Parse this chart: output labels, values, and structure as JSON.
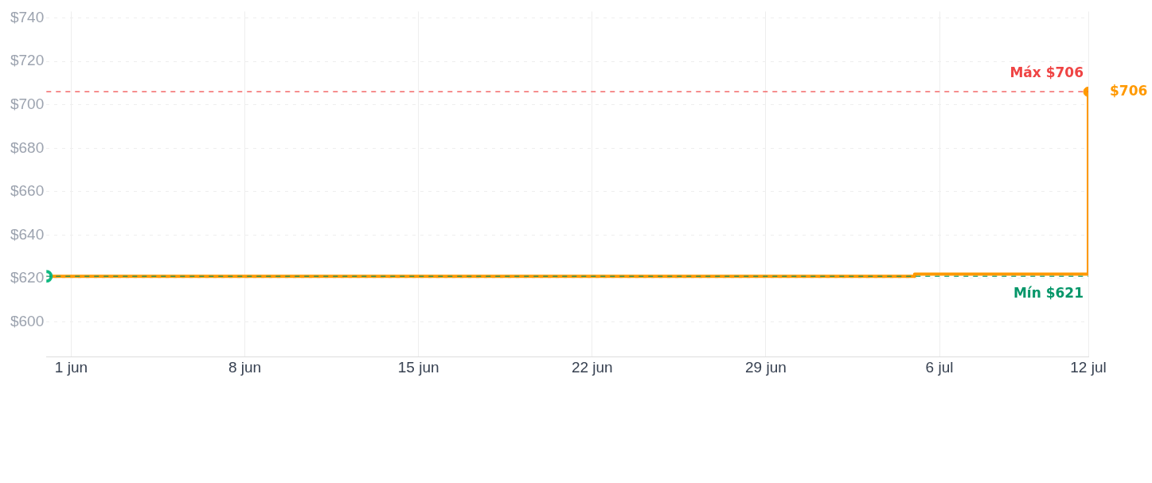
{
  "chart_data": {
    "type": "step",
    "x": [
      "--05-31",
      "--07-05",
      "--07-12"
    ],
    "series": [
      {
        "color": "#ff9900",
        "values": [
          621,
          622,
          706
        ]
      }
    ],
    "xlim": [
      "--05-31",
      "--07-12"
    ],
    "xticks": [
      {
        "value": "--06-01",
        "label": "1 jun"
      },
      {
        "value": "--06-08",
        "label": "8 jun"
      },
      {
        "value": "--06-15",
        "label": "15 jun"
      },
      {
        "value": "--06-22",
        "label": "22 jun"
      },
      {
        "value": "--06-29",
        "label": "29 jun"
      },
      {
        "value": "--07-06",
        "label": "6 jul"
      },
      {
        "value": "--07-12",
        "label": "12 jul"
      }
    ],
    "ylim": [
      584,
      743
    ],
    "yticks": [
      {
        "value": 600,
        "label": "$600"
      },
      {
        "value": 620,
        "label": "$620"
      },
      {
        "value": 640,
        "label": "$640"
      },
      {
        "value": 660,
        "label": "$660"
      },
      {
        "value": 680,
        "label": "$680"
      },
      {
        "value": 700,
        "label": "$700"
      },
      {
        "value": 720,
        "label": "$720"
      },
      {
        "value": 740,
        "label": "$740"
      }
    ],
    "grid": true,
    "line_style": "solid",
    "ref_lines": [
      {
        "axis": "y",
        "value": 706,
        "label": "Máx $706",
        "color": "#ef4444",
        "line_style": "dashed"
      },
      {
        "axis": "y",
        "value": 621,
        "label": "Mín $621",
        "color": "#059669",
        "line_style": "dashed"
      }
    ],
    "annotations": [
      {
        "text": "$706",
        "x": "--07-12",
        "y": 706
      }
    ]
  }
}
